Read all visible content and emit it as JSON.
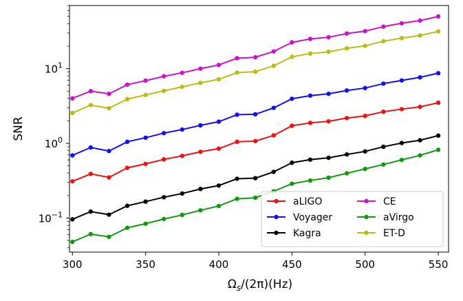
{
  "chart_data": {
    "type": "line",
    "xlabel": "Ω",
    "xlabel_sub": "s",
    "xlabel_rest": "/(2π)(Hz)",
    "ylabel": "SNR",
    "y_scale": "log",
    "xlim": [
      298,
      557
    ],
    "ylim": [
      0.035,
      70
    ],
    "x_ticks": [
      300,
      350,
      400,
      450,
      500,
      550
    ],
    "y_ticks": [
      {
        "value": 0.1,
        "base": "10",
        "exp": "−1"
      },
      {
        "value": 1,
        "base": "10",
        "exp": "0"
      },
      {
        "value": 10,
        "base": "10",
        "exp": "1"
      }
    ],
    "legend_position": "lower-right",
    "grid": false,
    "x": [
      300,
      312.5,
      325,
      337.5,
      350,
      362.5,
      375,
      387.5,
      400,
      412.5,
      425,
      437.5,
      450,
      462.5,
      475,
      487.5,
      500,
      512.5,
      525,
      537.5,
      550
    ],
    "series": [
      {
        "name": "aLIGO",
        "color": "#ee1111",
        "values": [
          0.31,
          0.39,
          0.35,
          0.47,
          0.53,
          0.61,
          0.68,
          0.77,
          0.85,
          1.05,
          1.07,
          1.28,
          1.72,
          1.88,
          1.97,
          2.18,
          2.33,
          2.65,
          2.87,
          3.08,
          3.5
        ]
      },
      {
        "name": "Voyager",
        "color": "#1111ee",
        "values": [
          0.69,
          0.88,
          0.79,
          1.05,
          1.19,
          1.37,
          1.53,
          1.74,
          1.95,
          2.42,
          2.45,
          2.98,
          3.95,
          4.35,
          4.6,
          5.1,
          5.5,
          6.3,
          6.95,
          7.65,
          8.7
        ]
      },
      {
        "name": "Kagra",
        "color": "#000000",
        "values": [
          0.096,
          0.122,
          0.111,
          0.146,
          0.166,
          0.19,
          0.213,
          0.245,
          0.272,
          0.336,
          0.342,
          0.415,
          0.55,
          0.605,
          0.64,
          0.71,
          0.78,
          0.9,
          1.01,
          1.1,
          1.27
        ]
      },
      {
        "name": "CE",
        "color": "#cc11cc",
        "values": [
          4.0,
          5.0,
          4.6,
          6.1,
          6.9,
          7.9,
          8.8,
          10.0,
          11.2,
          13.8,
          14.2,
          17.0,
          22.5,
          25.0,
          26.3,
          29.5,
          31.8,
          36.5,
          40.5,
          44.0,
          50.0
        ]
      },
      {
        "name": "aVirgo",
        "color": "#119911",
        "values": [
          0.048,
          0.061,
          0.056,
          0.074,
          0.084,
          0.097,
          0.11,
          0.127,
          0.145,
          0.181,
          0.187,
          0.228,
          0.288,
          0.318,
          0.347,
          0.397,
          0.455,
          0.52,
          0.6,
          0.69,
          0.82
        ]
      },
      {
        "name": "ET-D",
        "color": "#bbbb11",
        "values": [
          2.55,
          3.25,
          2.95,
          3.9,
          4.45,
          5.05,
          5.7,
          6.45,
          7.2,
          8.85,
          9.1,
          10.9,
          14.4,
          15.9,
          16.8,
          18.7,
          20.2,
          23.3,
          25.6,
          27.8,
          31.5
        ]
      }
    ]
  }
}
